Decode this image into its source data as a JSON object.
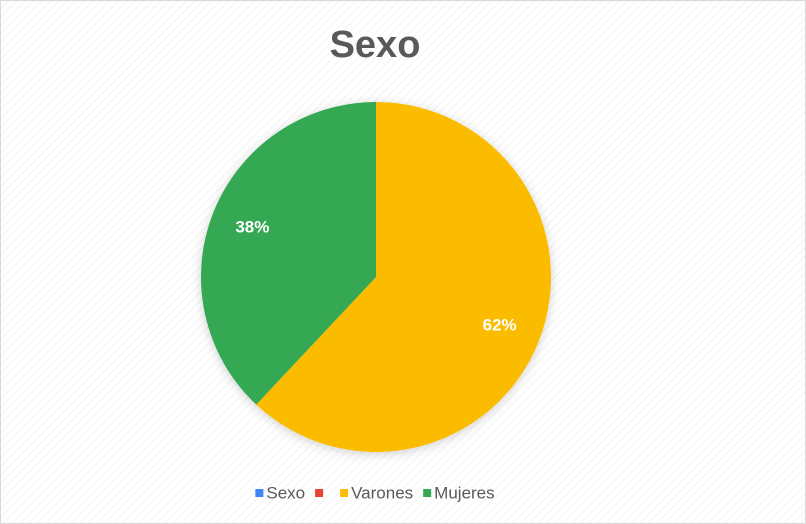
{
  "chart_data": {
    "type": "pie",
    "title": "Sexo",
    "categories": [
      "Sexo",
      null,
      "Varones",
      "Mujeres"
    ],
    "values": [
      null,
      null,
      62,
      38
    ],
    "value_labels": [
      null,
      null,
      "62%",
      "38%"
    ],
    "colors": [
      "#4285f4",
      "#ea4335",
      "#fbbc04",
      "#34a853"
    ],
    "legend": "bottom"
  }
}
